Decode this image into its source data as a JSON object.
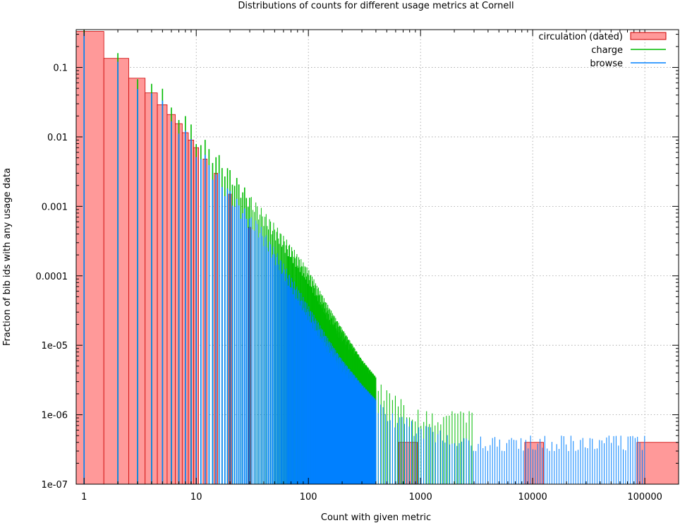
{
  "chart_data": {
    "type": "bar",
    "title": "Distributions of counts for different usage metrics at Cornell",
    "xlabel": "Count with given metric",
    "ylabel": "Fraction of bib ids with any usage data",
    "xscale": "log",
    "yscale": "log",
    "xlim": [
      0.85,
      200000
    ],
    "ylim": [
      1e-07,
      0.35
    ],
    "grid": true,
    "legend_position": "top-right",
    "x_ticks": [
      {
        "value": 1,
        "label": "1"
      },
      {
        "value": 10,
        "label": "10"
      },
      {
        "value": 100,
        "label": "100"
      },
      {
        "value": 1000,
        "label": "1000"
      },
      {
        "value": 10000,
        "label": "10000"
      },
      {
        "value": 100000,
        "label": "100000"
      }
    ],
    "y_ticks": [
      {
        "value": 0.1,
        "label": "0.1"
      },
      {
        "value": 0.01,
        "label": "0.01"
      },
      {
        "value": 0.001,
        "label": "0.001"
      },
      {
        "value": 0.0001,
        "label": "0.0001"
      },
      {
        "value": 1e-05,
        "label": "1e-05"
      },
      {
        "value": 1e-06,
        "label": "1e-06"
      },
      {
        "value": 1e-07,
        "label": "1e-07"
      }
    ],
    "series": [
      {
        "name": "circulation (dated)",
        "style": "boxes",
        "color": "#ff9999",
        "edge_color": "#cc0000",
        "points": [
          {
            "x": 1,
            "y": 0.33
          },
          {
            "x": 2,
            "y": 0.135
          },
          {
            "x": 3,
            "y": 0.07
          },
          {
            "x": 4,
            "y": 0.043
          },
          {
            "x": 5,
            "y": 0.029
          },
          {
            "x": 6,
            "y": 0.021
          },
          {
            "x": 7,
            "y": 0.0155
          },
          {
            "x": 8,
            "y": 0.0115
          },
          {
            "x": 9,
            "y": 0.009
          },
          {
            "x": 10,
            "y": 0.007
          },
          {
            "x": 12,
            "y": 0.0048
          },
          {
            "x": 15,
            "y": 0.003
          },
          {
            "x": 20,
            "y": 0.0015
          },
          {
            "x": 30,
            "y": 0.0005
          },
          {
            "x": 750,
            "y": 4e-07
          },
          {
            "x": 10000,
            "y": 4e-07
          },
          {
            "x": 100000,
            "y": 4e-07
          }
        ]
      },
      {
        "name": "charge",
        "style": "impulses",
        "color": "#00bb00",
        "points": [
          {
            "x": 1,
            "y": 0.35
          },
          {
            "x": 2,
            "y": 0.16
          },
          {
            "x": 3,
            "y": 0.09
          },
          {
            "x": 4,
            "y": 0.055
          },
          {
            "x": 5,
            "y": 0.04
          },
          {
            "x": 6,
            "y": 0.03
          },
          {
            "x": 7,
            "y": 0.022
          },
          {
            "x": 8,
            "y": 0.017
          },
          {
            "x": 9,
            "y": 0.013
          },
          {
            "x": 10,
            "y": 0.01
          },
          {
            "x": 15,
            "y": 0.005
          },
          {
            "x": 20,
            "y": 0.0028
          },
          {
            "x": 30,
            "y": 0.0012
          },
          {
            "x": 50,
            "y": 0.00045
          },
          {
            "x": 70,
            "y": 0.00022
          },
          {
            "x": 100,
            "y": 0.0001
          },
          {
            "x": 150,
            "y": 3e-05
          },
          {
            "x": 200,
            "y": 1.4e-05
          },
          {
            "x": 300,
            "y": 5e-06
          },
          {
            "x": 500,
            "y": 1.8e-06
          },
          {
            "x": 1000,
            "y": 9e-07
          },
          {
            "x": 3000,
            "y": 9e-07
          }
        ]
      },
      {
        "name": "browse",
        "style": "impulses",
        "color": "#0080ff",
        "points": [
          {
            "x": 1,
            "y": 0.25
          },
          {
            "x": 2,
            "y": 0.12
          },
          {
            "x": 3,
            "y": 0.065
          },
          {
            "x": 4,
            "y": 0.04
          },
          {
            "x": 5,
            "y": 0.027
          },
          {
            "x": 6,
            "y": 0.019
          },
          {
            "x": 7,
            "y": 0.014
          },
          {
            "x": 8,
            "y": 0.0105
          },
          {
            "x": 9,
            "y": 0.008
          },
          {
            "x": 10,
            "y": 0.0065
          },
          {
            "x": 15,
            "y": 0.0028
          },
          {
            "x": 20,
            "y": 0.0014
          },
          {
            "x": 30,
            "y": 0.0006
          },
          {
            "x": 35,
            "y": 0.0005
          },
          {
            "x": 50,
            "y": 0.0002
          },
          {
            "x": 70,
            "y": 8e-05
          },
          {
            "x": 100,
            "y": 3e-05
          },
          {
            "x": 150,
            "y": 1e-05
          },
          {
            "x": 200,
            "y": 5e-06
          },
          {
            "x": 300,
            "y": 2.2e-06
          },
          {
            "x": 500,
            "y": 9e-07
          },
          {
            "x": 1000,
            "y": 6e-07
          },
          {
            "x": 2000,
            "y": 4e-07
          },
          {
            "x": 10000,
            "y": 4e-07
          },
          {
            "x": 100000,
            "y": 4e-07
          }
        ]
      }
    ]
  }
}
